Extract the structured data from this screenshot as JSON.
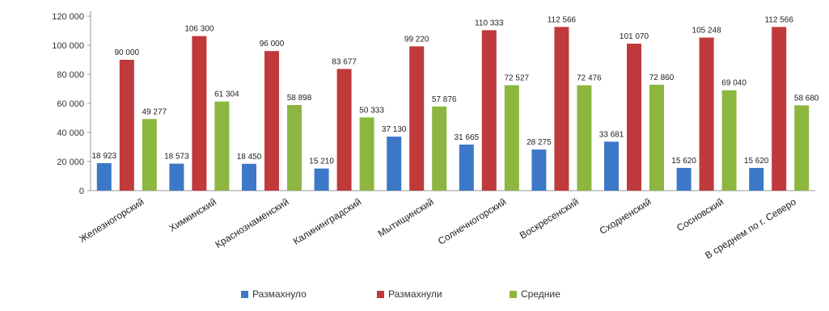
{
  "chart_data": {
    "type": "bar",
    "categories": [
      "Железногорский",
      "Химкинский",
      "Краснознаменский",
      "Калининградский",
      "Мытищинский",
      "Солнечногорский",
      "Воскресенский",
      "Сходненский",
      "Сосновский",
      "В среднем по г. Северо"
    ],
    "series": [
      {
        "name": "Размахнуло",
        "color": "#3c78c8",
        "values": [
          18923,
          18573,
          18450,
          15210,
          37130,
          31665,
          28275,
          33681,
          15620,
          15620
        ],
        "labels": [
          "18 923",
          "18 573",
          "18 450",
          "15 210",
          "37 130",
          "31 665",
          "28 275",
          "33 681",
          "15 620",
          "15 620"
        ]
      },
      {
        "name": "Размахнули",
        "color": "#c0393b",
        "values": [
          90000,
          106300,
          96000,
          83677,
          99220,
          110333,
          112566,
          101070,
          105248,
          112566
        ],
        "labels": [
          "90 000",
          "106 300",
          "96 000",
          "83 677",
          "99 220",
          "110 333",
          "112 566",
          "101 070",
          "105 248",
          "112 566"
        ]
      },
      {
        "name": "Средние",
        "color": "#8db640",
        "values": [
          49277,
          61304,
          58898,
          50333,
          57876,
          72527,
          72476,
          72860,
          69040,
          58680
        ],
        "labels": [
          "49 277",
          "61 304",
          "58 898",
          "50 333",
          "57 876",
          "72 527",
          "72 476",
          "72 860",
          "69 040",
          "58 680"
        ]
      }
    ],
    "yticks": [
      "0",
      "20 000",
      "40 000",
      "60 000",
      "80 000",
      "100 000",
      "120 000"
    ],
    "ylim": [
      0,
      120000
    ],
    "grid": false,
    "legend": "bottom",
    "title": "",
    "xlabel": "",
    "ylabel": ""
  }
}
